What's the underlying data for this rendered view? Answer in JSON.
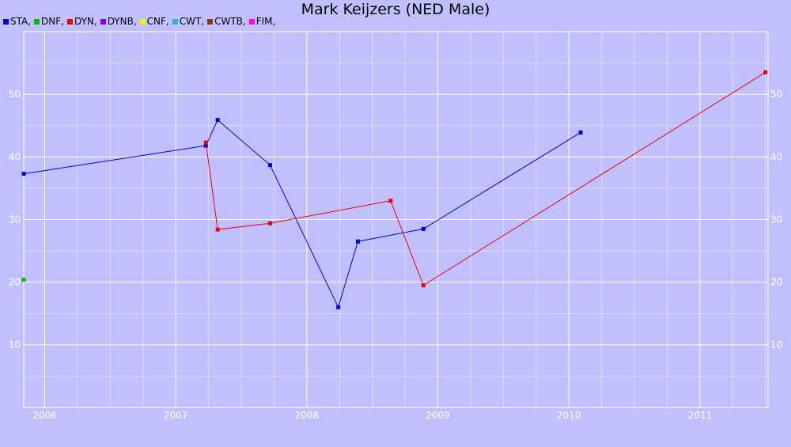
{
  "chart_data": {
    "type": "line",
    "title": "Mark Keijzers (NED Male)",
    "legend": [
      {
        "name": "STA",
        "label": "STA,",
        "color": "#0000dd"
      },
      {
        "name": "DNF",
        "label": "DNF,",
        "color": "#00bb00"
      },
      {
        "name": "DYN",
        "label": "DYN,",
        "color": "#ee0000"
      },
      {
        "name": "DYNB",
        "label": "DYNB,",
        "color": "#7f00ff"
      },
      {
        "name": "CNF",
        "label": "CNF,",
        "color": "#ffee00"
      },
      {
        "name": "CWT",
        "label": "CWT,",
        "color": "#22bbcc"
      },
      {
        "name": "CWTB",
        "label": "CWTB,",
        "color": "#993300"
      },
      {
        "name": "FIM",
        "label": "FIM,",
        "color": "#ff00ff"
      }
    ],
    "x_ticks": [
      "2006",
      "2007",
      "2008",
      "2009",
      "2010",
      "2011"
    ],
    "xlim": [
      2005.84,
      2011.52
    ],
    "y_ticks": [
      10,
      20,
      30,
      40,
      50
    ],
    "ylim": [
      0,
      60
    ],
    "grid": true,
    "series": [
      {
        "name": "STA",
        "color": "#0000dd",
        "x": [
          2005.84,
          2007.23,
          2007.32,
          2007.72,
          2008.24,
          2008.39,
          2008.89,
          2010.09
        ],
        "y": [
          37.3,
          41.8,
          45.9,
          38.7,
          16.0,
          26.5,
          28.5,
          43.9
        ]
      },
      {
        "name": "DNF",
        "color": "#00bb00",
        "x": [
          2005.84
        ],
        "y": [
          20.4
        ]
      },
      {
        "name": "DYN",
        "color": "#ee0000",
        "x": [
          2007.23,
          2007.32,
          2007.72,
          2008.64,
          2008.89,
          2011.5
        ],
        "y": [
          42.3,
          28.4,
          29.4,
          33.0,
          19.5,
          53.5
        ]
      }
    ]
  }
}
